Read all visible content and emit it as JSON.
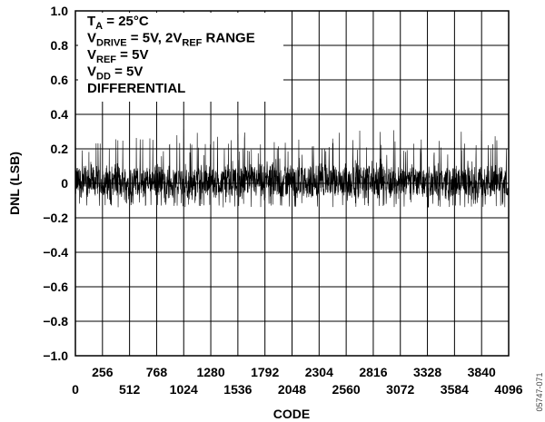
{
  "chart_data": {
    "type": "line",
    "xlabel": "CODE",
    "ylabel": "DNL (LSB)",
    "xlim": [
      0,
      4096
    ],
    "ylim": [
      -1.0,
      1.0
    ],
    "x_ticks": [
      0,
      256,
      512,
      768,
      1024,
      1280,
      1536,
      1792,
      2048,
      2304,
      2560,
      2816,
      3072,
      3328,
      3584,
      3840,
      4096
    ],
    "x_tick_labels": [
      "0",
      "256",
      "512",
      "768",
      "1024",
      "1280",
      "1536",
      "1792",
      "2048",
      "2304",
      "2560",
      "2816",
      "3072",
      "3328",
      "3584",
      "3840",
      "4096"
    ],
    "y_ticks": [
      1.0,
      0.8,
      0.6,
      0.4,
      0.2,
      0,
      -0.2,
      -0.4,
      -0.6,
      -0.8,
      -1.0
    ],
    "y_tick_labels": [
      "1.0",
      "0.8",
      "0.6",
      "0.4",
      "0.2",
      "0",
      "−0.2",
      "−0.4",
      "−0.6",
      "−0.8",
      "−1.0"
    ],
    "grid": true,
    "series": [
      {
        "noise_band": [
          -0.11,
          0.13
        ],
        "spike_max": 0.32,
        "spike_interval_codes": 64,
        "color": "#000000"
      }
    ],
    "annotations": [
      {
        "main": "T",
        "sub": "A",
        "rest": " = 25°C"
      },
      {
        "main": "V",
        "sub": "DRIVE",
        "rest": " = 5V, 2V",
        "sub2": "REF",
        "rest2": " RANGE"
      },
      {
        "main": "V",
        "sub": "REF",
        "rest": " = 5V"
      },
      {
        "main": "V",
        "sub": "DD",
        "rest": " = 5V"
      },
      {
        "main": "DIFFERENTIAL"
      }
    ],
    "figure_id": "05747-071"
  }
}
